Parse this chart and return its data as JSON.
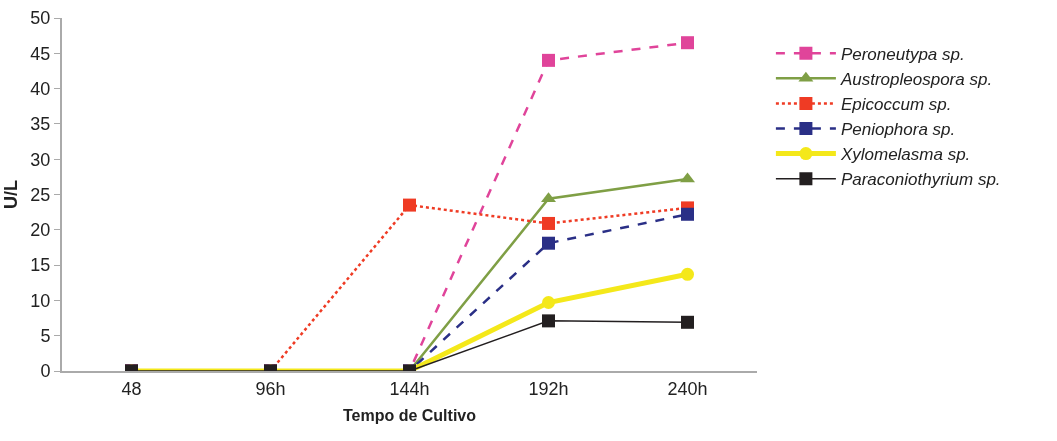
{
  "chart_data": {
    "type": "line",
    "xlabel": "Tempo de Cultivo",
    "ylabel": "U/L",
    "categories": [
      "48",
      "96h",
      "144h",
      "192h",
      "240h"
    ],
    "ylim": [
      0,
      50
    ],
    "yticks": [
      0,
      5,
      10,
      15,
      20,
      25,
      30,
      35,
      40,
      45,
      50
    ],
    "grid": false,
    "legend": "right",
    "series": [
      {
        "name": "Peroneutypa sp.",
        "color": "#e0449a",
        "marker": "square",
        "line_style": "dashed",
        "values": [
          0,
          0,
          0,
          44.0,
          46.5
        ]
      },
      {
        "name": "Austropleospora sp.",
        "color": "#7f9f45",
        "marker": "triangle",
        "line_style": "solid",
        "values": [
          0,
          0,
          0,
          24.4,
          27.2
        ]
      },
      {
        "name": "Epicoccum sp.",
        "color": "#ef3b24",
        "marker": "square",
        "line_style": "dotted",
        "values": [
          0,
          0,
          23.5,
          20.9,
          23.1
        ]
      },
      {
        "name": "Peniophora sp.",
        "color": "#2a2f86",
        "marker": "square",
        "line_style": "dashed",
        "values": [
          0,
          0,
          0,
          18.1,
          22.2
        ]
      },
      {
        "name": "Xylomelasma sp.",
        "color": "#f4e81a",
        "marker": "circle",
        "line_style": "solid",
        "values": [
          0,
          0,
          0,
          9.7,
          13.7
        ]
      },
      {
        "name": "Paraconiothyrium sp.",
        "color": "#231f20",
        "marker": "square",
        "line_style": "solid",
        "values": [
          0,
          0,
          0,
          7.1,
          6.9
        ]
      }
    ]
  }
}
